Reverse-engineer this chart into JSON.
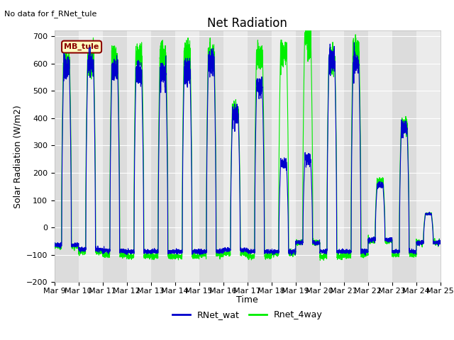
{
  "title": "Net Radiation",
  "annotation_top_left": "No data for f_RNet_tule",
  "legend_box_label": "MB_tule",
  "legend_box_facecolor": "#FFFFC0",
  "legend_box_edgecolor": "#8B0000",
  "legend_box_textcolor": "#8B0000",
  "ylabel": "Solar Radiation (W/m2)",
  "xlabel": "Time",
  "ylim": [
    -200,
    720
  ],
  "yticks": [
    -200,
    -100,
    0,
    100,
    200,
    300,
    400,
    500,
    600,
    700
  ],
  "line1_label": "RNet_wat",
  "line1_color": "#0000CC",
  "line2_label": "Rnet_4way",
  "line2_color": "#00EE00",
  "background_color": "#ffffff",
  "plot_bg_color": "#ebebeb",
  "band_color_dark": "#dcdcdc",
  "band_color_light": "#ebebeb",
  "grid_color": "#ffffff",
  "title_fontsize": 12,
  "label_fontsize": 9,
  "tick_fontsize": 8,
  "n_days": 16,
  "start_day": 9,
  "points_per_day": 288,
  "day_peak_wat": [
    580,
    600,
    575,
    560,
    565,
    580,
    605,
    415,
    515,
    235,
    250,
    610,
    598,
    155,
    365,
    50
  ],
  "day_peak_4way": [
    605,
    615,
    615,
    630,
    625,
    635,
    620,
    425,
    625,
    635,
    690,
    612,
    645,
    170,
    370,
    50
  ],
  "day_night_wat": [
    -65,
    -80,
    -85,
    -88,
    -88,
    -88,
    -88,
    -82,
    -88,
    -88,
    -55,
    -88,
    -88,
    -45,
    -88,
    -55
  ],
  "day_night_4way": [
    -70,
    -88,
    -100,
    -105,
    -105,
    -105,
    -100,
    -95,
    -105,
    -95,
    -55,
    -105,
    -100,
    -50,
    -100,
    -55
  ],
  "cloudy_days": []
}
